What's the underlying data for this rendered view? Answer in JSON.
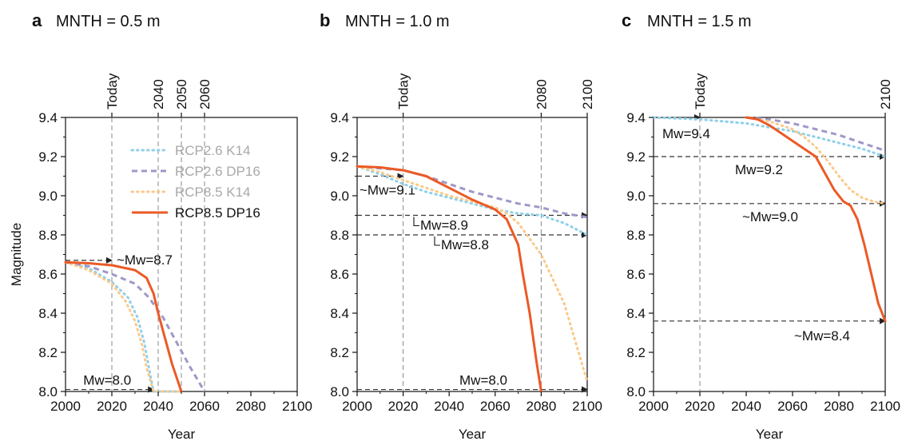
{
  "colors": {
    "rcp26_k14": "#8fd0ea",
    "rcp26_dp16": "#9f98c8",
    "rcp85_k14": "#fbc98a",
    "rcp85_dp16": "#eb5a26",
    "ref_line": "#888888",
    "arrow": "#222222",
    "legend_faded": "#a8a8a8"
  },
  "legend": [
    {
      "label": "RCP2.6 K14",
      "faded": true
    },
    {
      "label": "RCP2.6 DP16",
      "faded": true
    },
    {
      "label": "RCP8.5 K14",
      "faded": true
    },
    {
      "label": "RCP8.5 DP16",
      "faded": false
    }
  ],
  "chart_data": [
    {
      "type": "line",
      "panel": "a",
      "title": "MNTH = 0.5 m",
      "xlabel": "Year",
      "ylabel": "Magnitude",
      "xlim": [
        2000,
        2100
      ],
      "ylim": [
        8.0,
        9.4
      ],
      "xticks": [
        "2000",
        "2020",
        "2040",
        "2060",
        "2080",
        "2100"
      ],
      "yticks": [
        "8.0",
        "8.2",
        "8.4",
        "8.6",
        "8.8",
        "9.0",
        "9.2",
        "9.4"
      ],
      "top_ticks": [
        {
          "x": 2020,
          "label": "Today"
        },
        {
          "x": 2040,
          "label": "2040"
        },
        {
          "x": 2050,
          "label": "2050"
        },
        {
          "x": 2060,
          "label": "2060"
        }
      ],
      "series": [
        {
          "name": "RCP2.6 K14",
          "style": "dotted",
          "x": [
            2000,
            2010,
            2020,
            2027,
            2031,
            2034,
            2036,
            2038,
            2050
          ],
          "y": [
            8.66,
            8.63,
            8.56,
            8.48,
            8.38,
            8.25,
            8.12,
            8.0,
            8.0
          ]
        },
        {
          "name": "RCP2.6 DP16",
          "style": "dashed",
          "x": [
            2000,
            2010,
            2020,
            2030,
            2036,
            2042,
            2048,
            2054,
            2060
          ],
          "y": [
            8.66,
            8.64,
            8.6,
            8.55,
            8.48,
            8.38,
            8.25,
            8.12,
            8.0
          ]
        },
        {
          "name": "RCP8.5 K14",
          "style": "dotted",
          "x": [
            2000,
            2010,
            2020,
            2026,
            2030,
            2033,
            2035,
            2038,
            2050
          ],
          "y": [
            8.66,
            8.62,
            8.55,
            8.46,
            8.36,
            8.24,
            8.12,
            8.0,
            8.0
          ]
        },
        {
          "name": "RCP8.5 DP16",
          "style": "solid",
          "x": [
            2000,
            2010,
            2020,
            2030,
            2035,
            2038,
            2040,
            2043,
            2046,
            2050
          ],
          "y": [
            8.66,
            8.655,
            8.645,
            8.62,
            8.58,
            8.5,
            8.4,
            8.27,
            8.14,
            8.0
          ]
        }
      ],
      "reference_lines": [
        {
          "value": 8.67,
          "label": "~Mw=8.7",
          "x_end": 2020
        },
        {
          "value": 8.01,
          "label": "Mw=8.0",
          "x_end": 2038
        }
      ]
    },
    {
      "type": "line",
      "panel": "b",
      "title": "MNTH = 1.0 m",
      "xlabel": "Year",
      "ylabel": "",
      "xlim": [
        2000,
        2100
      ],
      "ylim": [
        8.0,
        9.4
      ],
      "xticks": [
        "2000",
        "2020",
        "2040",
        "2060",
        "2080",
        "2100"
      ],
      "yticks": [
        "8.0",
        "8.2",
        "8.4",
        "8.6",
        "8.8",
        "9.0",
        "9.2",
        "9.4"
      ],
      "top_ticks": [
        {
          "x": 2020,
          "label": "Today"
        },
        {
          "x": 2080,
          "label": "2080"
        },
        {
          "x": 2100,
          "label": "2100"
        }
      ],
      "series": [
        {
          "name": "RCP2.6 K14",
          "style": "dotted",
          "x": [
            2000,
            2010,
            2020,
            2030,
            2040,
            2050,
            2060,
            2070,
            2080,
            2090,
            2100
          ],
          "y": [
            9.15,
            9.11,
            9.06,
            9.02,
            8.99,
            8.96,
            8.93,
            8.91,
            8.9,
            8.86,
            8.8
          ]
        },
        {
          "name": "RCP2.6 DP16",
          "style": "dashed",
          "x": [
            2000,
            2010,
            2020,
            2030,
            2040,
            2050,
            2060,
            2070,
            2080,
            2090,
            2100
          ],
          "y": [
            9.15,
            9.14,
            9.13,
            9.1,
            9.06,
            9.02,
            8.99,
            8.96,
            8.94,
            8.91,
            8.89
          ]
        },
        {
          "name": "RCP8.5 K14",
          "style": "dotted",
          "x": [
            2000,
            2010,
            2020,
            2030,
            2040,
            2050,
            2060,
            2065,
            2070,
            2080,
            2090,
            2095,
            2100
          ],
          "y": [
            9.15,
            9.12,
            9.08,
            9.04,
            9.0,
            8.97,
            8.94,
            8.91,
            8.86,
            8.7,
            8.45,
            8.25,
            8.05
          ]
        },
        {
          "name": "RCP8.5 DP16",
          "style": "solid",
          "x": [
            2000,
            2010,
            2020,
            2030,
            2040,
            2050,
            2060,
            2065,
            2070,
            2072,
            2075,
            2078,
            2080
          ],
          "y": [
            9.15,
            9.145,
            9.13,
            9.1,
            9.04,
            8.98,
            8.93,
            8.88,
            8.75,
            8.6,
            8.4,
            8.15,
            8.0
          ]
        }
      ],
      "reference_lines": [
        {
          "value": 9.1,
          "label": "~Mw=9.1",
          "x_end": 2020
        },
        {
          "value": 8.9,
          "label": "Mw=8.9",
          "x_end": 2100
        },
        {
          "value": 8.8,
          "label": "Mw=8.8",
          "x_end": 2100
        },
        {
          "value": 8.01,
          "label": "Mw=8.0",
          "x_end": 2100
        }
      ]
    },
    {
      "type": "line",
      "panel": "c",
      "title": "MNTH = 1.5 m",
      "xlabel": "Year",
      "ylabel": "",
      "xlim": [
        2000,
        2100
      ],
      "ylim": [
        8.0,
        9.4
      ],
      "xticks": [
        "2000",
        "2020",
        "2040",
        "2060",
        "2080",
        "2100"
      ],
      "yticks": [
        "8.0",
        "8.2",
        "8.4",
        "8.6",
        "8.8",
        "9.0",
        "9.2",
        "9.4"
      ],
      "top_ticks": [
        {
          "x": 2020,
          "label": "Today"
        },
        {
          "x": 2100,
          "label": "2100"
        }
      ],
      "series": [
        {
          "name": "RCP2.6 K14",
          "style": "dotted",
          "x": [
            2000,
            2020,
            2040,
            2050,
            2060,
            2070,
            2080,
            2090,
            2100
          ],
          "y": [
            9.4,
            9.39,
            9.37,
            9.35,
            9.33,
            9.3,
            9.27,
            9.24,
            9.2
          ]
        },
        {
          "name": "RCP2.6 DP16",
          "style": "dashed",
          "x": [
            2040,
            2050,
            2060,
            2070,
            2080,
            2090,
            2100
          ],
          "y": [
            9.4,
            9.39,
            9.37,
            9.34,
            9.31,
            9.27,
            9.23
          ]
        },
        {
          "name": "RCP8.5 K14",
          "style": "dotted",
          "x": [
            2040,
            2050,
            2060,
            2065,
            2070,
            2075,
            2080,
            2085,
            2090,
            2095,
            2100
          ],
          "y": [
            9.4,
            9.38,
            9.34,
            9.3,
            9.25,
            9.18,
            9.1,
            9.03,
            8.99,
            8.97,
            8.96
          ]
        },
        {
          "name": "RCP8.5 DP16",
          "style": "solid",
          "x": [
            2040,
            2045,
            2050,
            2060,
            2070,
            2078,
            2082,
            2085,
            2088,
            2091,
            2094,
            2097,
            2100
          ],
          "y": [
            9.4,
            9.39,
            9.36,
            9.28,
            9.2,
            9.03,
            8.97,
            8.95,
            8.88,
            8.75,
            8.6,
            8.45,
            8.36
          ]
        }
      ],
      "reference_lines": [
        {
          "value": 9.4,
          "label": "Mw=9.4",
          "x_end": 2020
        },
        {
          "value": 9.2,
          "label": "Mw=9.2",
          "x_end": 2100
        },
        {
          "value": 8.96,
          "label": "~Mw=9.0",
          "x_end": 2100
        },
        {
          "value": 8.36,
          "label": "~Mw=8.4",
          "x_end": 2100
        }
      ]
    }
  ]
}
